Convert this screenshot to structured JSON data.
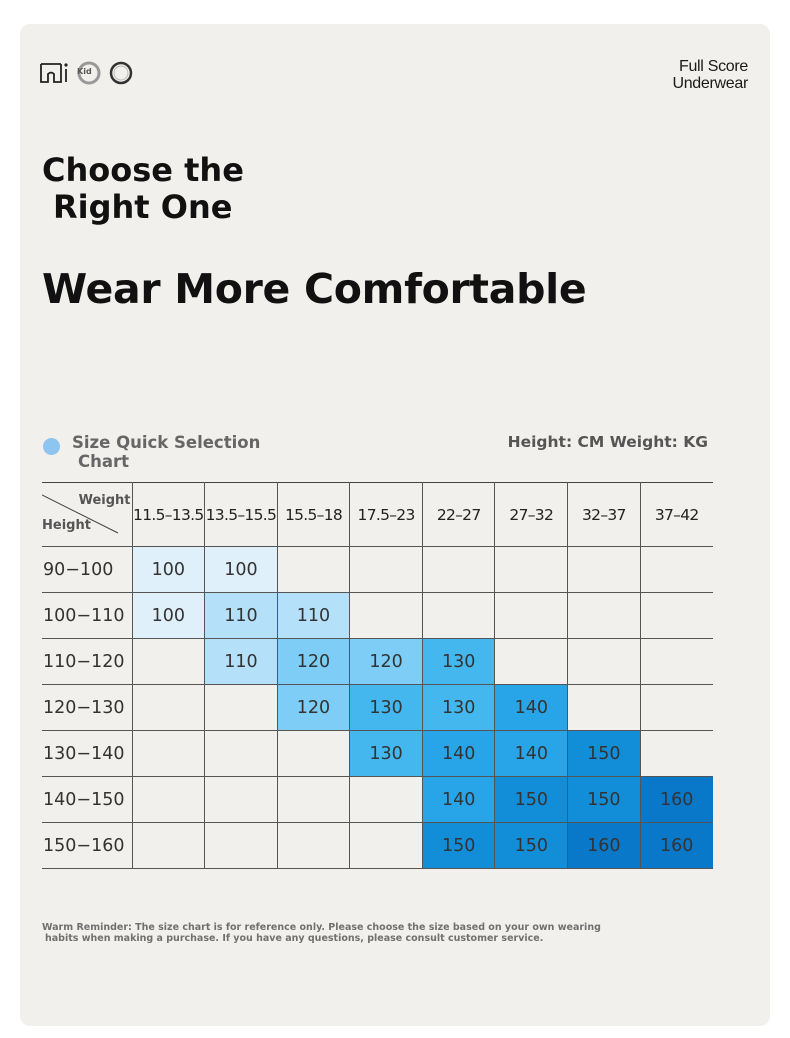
{
  "brand": {
    "line1": "Full Score",
    "line2": "Underwear"
  },
  "logo": {
    "badge_text": "Kid",
    "icons": [
      "underwear-icon",
      "kid-badge-icon",
      "ring-icon"
    ]
  },
  "headline": {
    "line1": "Choose the",
    "line2": "Right One",
    "line3": "Wear More Comfortable"
  },
  "section": {
    "title_line1": "Size Quick Selection",
    "title_line2": "Chart",
    "units": "Height: CM Weight: KG",
    "dot_color": "#8ec5f0"
  },
  "table": {
    "corner_weight": "Weight",
    "corner_height": "Height",
    "columns": [
      "11.5–13.5",
      "13.5–15.5",
      "15.5–18",
      "17.5–23",
      "22–27",
      "27–32",
      "32–37",
      "37–42"
    ],
    "rows": [
      {
        "height": "90−100",
        "sizes": [
          "100",
          "100",
          "",
          "",
          "",
          "",
          "",
          ""
        ]
      },
      {
        "height": "100−110",
        "sizes": [
          "100",
          "110",
          "110",
          "",
          "",
          "",
          "",
          ""
        ]
      },
      {
        "height": "110−120",
        "sizes": [
          "",
          "110",
          "120",
          "120",
          "130",
          "",
          "",
          ""
        ]
      },
      {
        "height": "120−130",
        "sizes": [
          "",
          "",
          "120",
          "130",
          "130",
          "140",
          "",
          ""
        ]
      },
      {
        "height": "130−140",
        "sizes": [
          "",
          "",
          "",
          "130",
          "140",
          "140",
          "150",
          ""
        ]
      },
      {
        "height": "140−150",
        "sizes": [
          "",
          "",
          "",
          "",
          "140",
          "150",
          "150",
          "160"
        ]
      },
      {
        "height": "150−160",
        "sizes": [
          "",
          "",
          "",
          "",
          "150",
          "150",
          "160",
          "160"
        ]
      }
    ],
    "size_colors": {
      "100": "#e0f0fb",
      "110": "#b5e0f9",
      "120": "#7dcdf6",
      "130": "#45b7ef",
      "140": "#27a5e8",
      "150": "#128dd8",
      "160": "#0a78c8"
    }
  },
  "reminder": {
    "line1": "Warm Reminder: The size chart is for reference only. Please choose the size based on your own wearing",
    "line2": "habits when making a purchase. If you have any questions, please consult customer service."
  }
}
